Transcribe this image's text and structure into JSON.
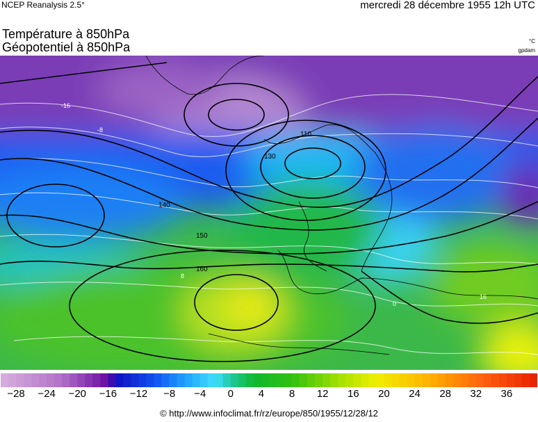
{
  "header": {
    "source": "NCEP Reanalysis 2.5°",
    "date": "mercredi 28 décembre 1955 12h UTC",
    "title_line1": "Température à 850hPa",
    "title_line2": "Géopotentiel à 850hPa",
    "unit_temperature": "°C",
    "unit_geopotential": "gpdam"
  },
  "map": {
    "type": "weather-map",
    "region": "europe",
    "geopotential_contour_labels": [
      "110",
      "130",
      "140",
      "150",
      "160"
    ],
    "temperature_contour_labels": [
      "-16",
      "-8",
      "0",
      "8",
      "16"
    ]
  },
  "colorbar": {
    "min": -30,
    "max": 40,
    "step": 1,
    "tick_labels": [
      "−28",
      "−24",
      "−20",
      "−16",
      "−12",
      "−8",
      "−4",
      "0",
      "4",
      "8",
      "12",
      "16",
      "20",
      "24",
      "28",
      "32",
      "36"
    ],
    "tick_values": [
      -28,
      -24,
      -20,
      -16,
      -12,
      -8,
      -4,
      0,
      4,
      8,
      12,
      16,
      20,
      24,
      28,
      32,
      36
    ],
    "stops": [
      [
        -30,
        "#d8b0e0"
      ],
      [
        -22,
        "#b070c8"
      ],
      [
        -16,
        "#6a0aa0"
      ],
      [
        -15,
        "#1010c0"
      ],
      [
        -10,
        "#1050f0"
      ],
      [
        -6,
        "#20a0ff"
      ],
      [
        -2,
        "#40e0ff"
      ],
      [
        0,
        "#20c8a0"
      ],
      [
        3,
        "#10b830"
      ],
      [
        8,
        "#30c010"
      ],
      [
        14,
        "#a0e000"
      ],
      [
        19,
        "#f0f000"
      ],
      [
        26,
        "#ffb000"
      ],
      [
        33,
        "#ff6010"
      ],
      [
        40,
        "#e82000"
      ]
    ]
  },
  "footer": {
    "text": "© http://www.infoclimat.fr/rz/europe/850/1955/12/28/12"
  }
}
